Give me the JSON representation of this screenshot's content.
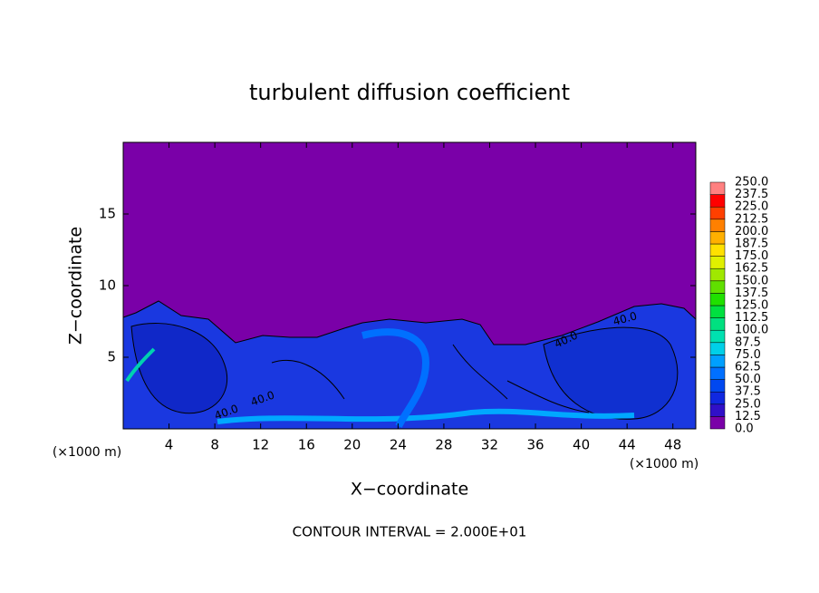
{
  "chart_data": {
    "type": "contour",
    "title": "turbulent diffusion coefficient",
    "xlabel": "X−coordinate",
    "ylabel": "Z−coordinate",
    "x_unit_label": "(×1000 m)",
    "footer": "CONTOUR INTERVAL = 2.000E+01",
    "contour_labels": [
      "40.0",
      "40.0",
      "40.0",
      "40.0"
    ],
    "xlim": [
      0,
      50
    ],
    "ylim": [
      0,
      20
    ],
    "xticks": [
      4,
      8,
      12,
      16,
      20,
      24,
      28,
      32,
      36,
      40,
      44,
      48
    ],
    "yticks": [
      5,
      10,
      15
    ],
    "colorbar": {
      "levels": [
        {
          "value": 0,
          "label": "0.0"
        },
        12.5,
        {
          "value": 25,
          "label": "25.0"
        },
        37.5,
        {
          "value": 50,
          "label": "50.0"
        },
        62.5,
        {
          "value": 75,
          "label": "75.0"
        },
        87.5,
        {
          "value": 100,
          "label": "100.0"
        },
        112.5,
        {
          "value": 125,
          "label": "125.0"
        },
        137.5,
        {
          "value": 150,
          "label": "150.0"
        },
        162.5,
        {
          "value": 175,
          "label": "175.0"
        },
        187.5,
        {
          "value": 200,
          "label": "200.0"
        },
        212.5,
        {
          "value": 225,
          "label": "225.0"
        },
        237.5,
        {
          "value": 250,
          "label": "250.0"
        }
      ],
      "colors": [
        "#7a00a8",
        "#3010c8",
        "#1028e0",
        "#0048f0",
        "#0070ff",
        "#00a0ff",
        "#00d0e8",
        "#00e0b0",
        "#00e080",
        "#00e040",
        "#20e000",
        "#60e000",
        "#a0e800",
        "#e0f000",
        "#ffe000",
        "#ffb000",
        "#ff8000",
        "#ff4000",
        "#ff0000",
        "#ff8080"
      ]
    }
  }
}
